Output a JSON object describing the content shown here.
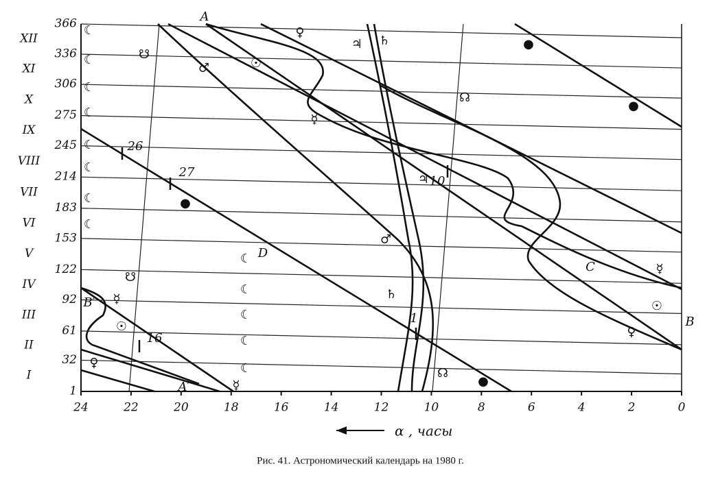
{
  "axis": {
    "y_ticks": [
      1,
      32,
      61,
      92,
      122,
      153,
      183,
      214,
      245,
      275,
      306,
      336,
      366
    ],
    "months": [
      "I",
      "II",
      "III",
      "IV",
      "V",
      "VI",
      "VII",
      "VIII",
      "IX",
      "X",
      "XI",
      "XII"
    ],
    "x_ticks": [
      24,
      22,
      20,
      18,
      16,
      14,
      12,
      10,
      8,
      6,
      4,
      2,
      0
    ],
    "x_label": "α , часы"
  },
  "symbols": [
    "A",
    "☾",
    "☾",
    "☾",
    "☾",
    "☾",
    "☾",
    "☾",
    "☾",
    "☾",
    "☾",
    "☾",
    "☾",
    "☾",
    "☋",
    "☋",
    "☊",
    "☊",
    "♀",
    "♀",
    "♀",
    "♃",
    "♃",
    "10",
    "♄",
    "♄",
    "●",
    "●",
    "●",
    "●",
    "♂",
    "♂",
    "☉",
    "☉",
    "☉",
    "☿",
    "☿",
    "☿",
    "☿",
    "26",
    "27",
    "16",
    "1",
    "D",
    "C",
    "B",
    "B′",
    "A′"
  ],
  "caption": "Рис. 41. Астрономический календарь на 1980 г."
}
